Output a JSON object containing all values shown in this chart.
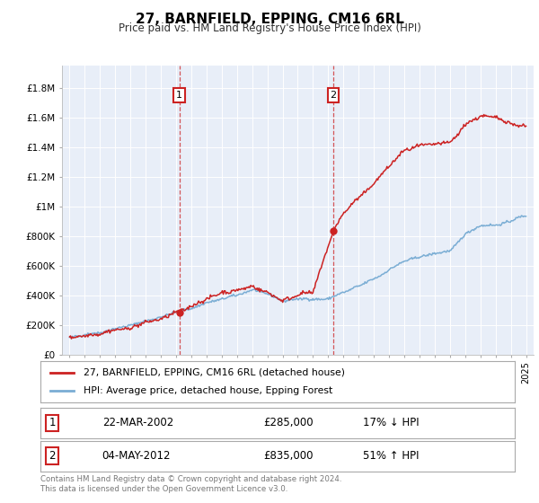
{
  "title": "27, BARNFIELD, EPPING, CM16 6RL",
  "subtitle": "Price paid vs. HM Land Registry's House Price Index (HPI)",
  "ylabel_ticks": [
    "£0",
    "£200K",
    "£400K",
    "£600K",
    "£800K",
    "£1M",
    "£1.2M",
    "£1.4M",
    "£1.6M",
    "£1.8M"
  ],
  "ytick_values": [
    0,
    200000,
    400000,
    600000,
    800000,
    1000000,
    1200000,
    1400000,
    1600000,
    1800000
  ],
  "ylim": [
    0,
    1950000
  ],
  "xlim_start": 1994.5,
  "xlim_end": 2025.5,
  "hpi_color": "#7aadd4",
  "price_color": "#cc2222",
  "marker1_x": 2002.22,
  "marker1_y": 285000,
  "marker2_x": 2012.34,
  "marker2_y": 835000,
  "legend_line1": "27, BARNFIELD, EPPING, CM16 6RL (detached house)",
  "legend_line2": "HPI: Average price, detached house, Epping Forest",
  "footer": "Contains HM Land Registry data © Crown copyright and database right 2024.\nThis data is licensed under the Open Government Licence v3.0.",
  "plot_bg": "#e8eef8",
  "fig_bg": "#ffffff"
}
